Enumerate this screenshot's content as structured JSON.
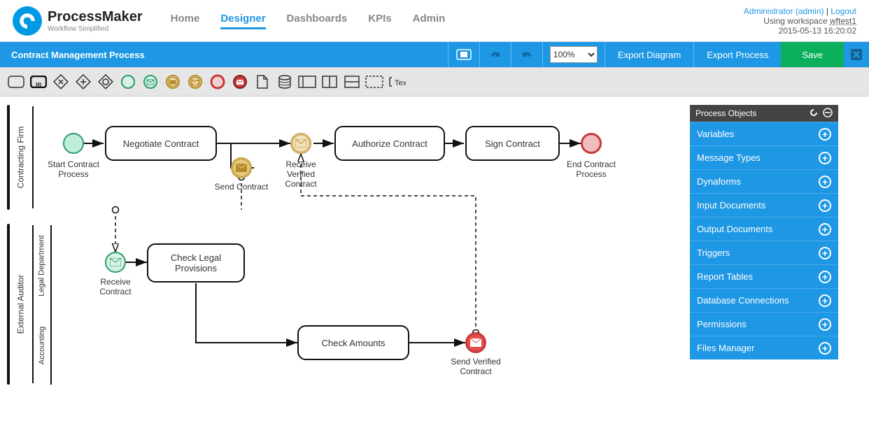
{
  "brand": {
    "name": "ProcessMaker",
    "tagline": "Workflow Simplified",
    "accent": "#1e97e4"
  },
  "nav": {
    "items": [
      "Home",
      "Designer",
      "Dashboards",
      "KPIs",
      "Admin"
    ],
    "active": 1
  },
  "user": {
    "name": "Administrator (admin)",
    "logout": "Logout",
    "workspace_prefix": "Using workspace",
    "workspace": "wftest1",
    "timestamp": "2015-05-13 16:20:02"
  },
  "bluebar": {
    "title": "Contract Management Process",
    "zoom": "100%",
    "export_diagram": "Export Diagram",
    "export_process": "Export Process",
    "save": "Save"
  },
  "side": {
    "header": "Process Objects",
    "items": [
      "Variables",
      "Message Types",
      "Dynaforms",
      "Input Documents",
      "Output Documents",
      "Triggers",
      "Report Tables",
      "Database Connections",
      "Permissions",
      "Files Manager"
    ]
  },
  "diagram": {
    "pool1": {
      "label": "Contracting Firm"
    },
    "pool2": {
      "label": "External Auditor",
      "lane1": "Legal Department",
      "lane2": "Accounting"
    },
    "events": {
      "start": "Start Contract\nProcess",
      "send_contract": "Send Contract",
      "receive_verified": "Receive\nVerified\nContract",
      "end": "End Contract\nProcess",
      "receive_contract": "Receive\nContract",
      "send_verified": "Send Verified\nContract"
    },
    "tasks": {
      "negotiate": "Negotiate Contract",
      "authorize": "Authorize Contract",
      "sign": "Sign Contract",
      "check_legal": "Check Legal\nProvisions",
      "check_amounts": "Check Amounts"
    },
    "colors": {
      "start_stroke": "#2e9b6a",
      "start_fill": "#bfeedc",
      "msg_throw_stroke": "#b58a2a",
      "msg_throw_fill": "#e9c97c",
      "msg_catch_stroke": "#2e9b6a",
      "msg_catch_fill": "#d7f2e4",
      "end_stroke": "#c33b3b",
      "end_fill": "#f1bcbc"
    }
  }
}
